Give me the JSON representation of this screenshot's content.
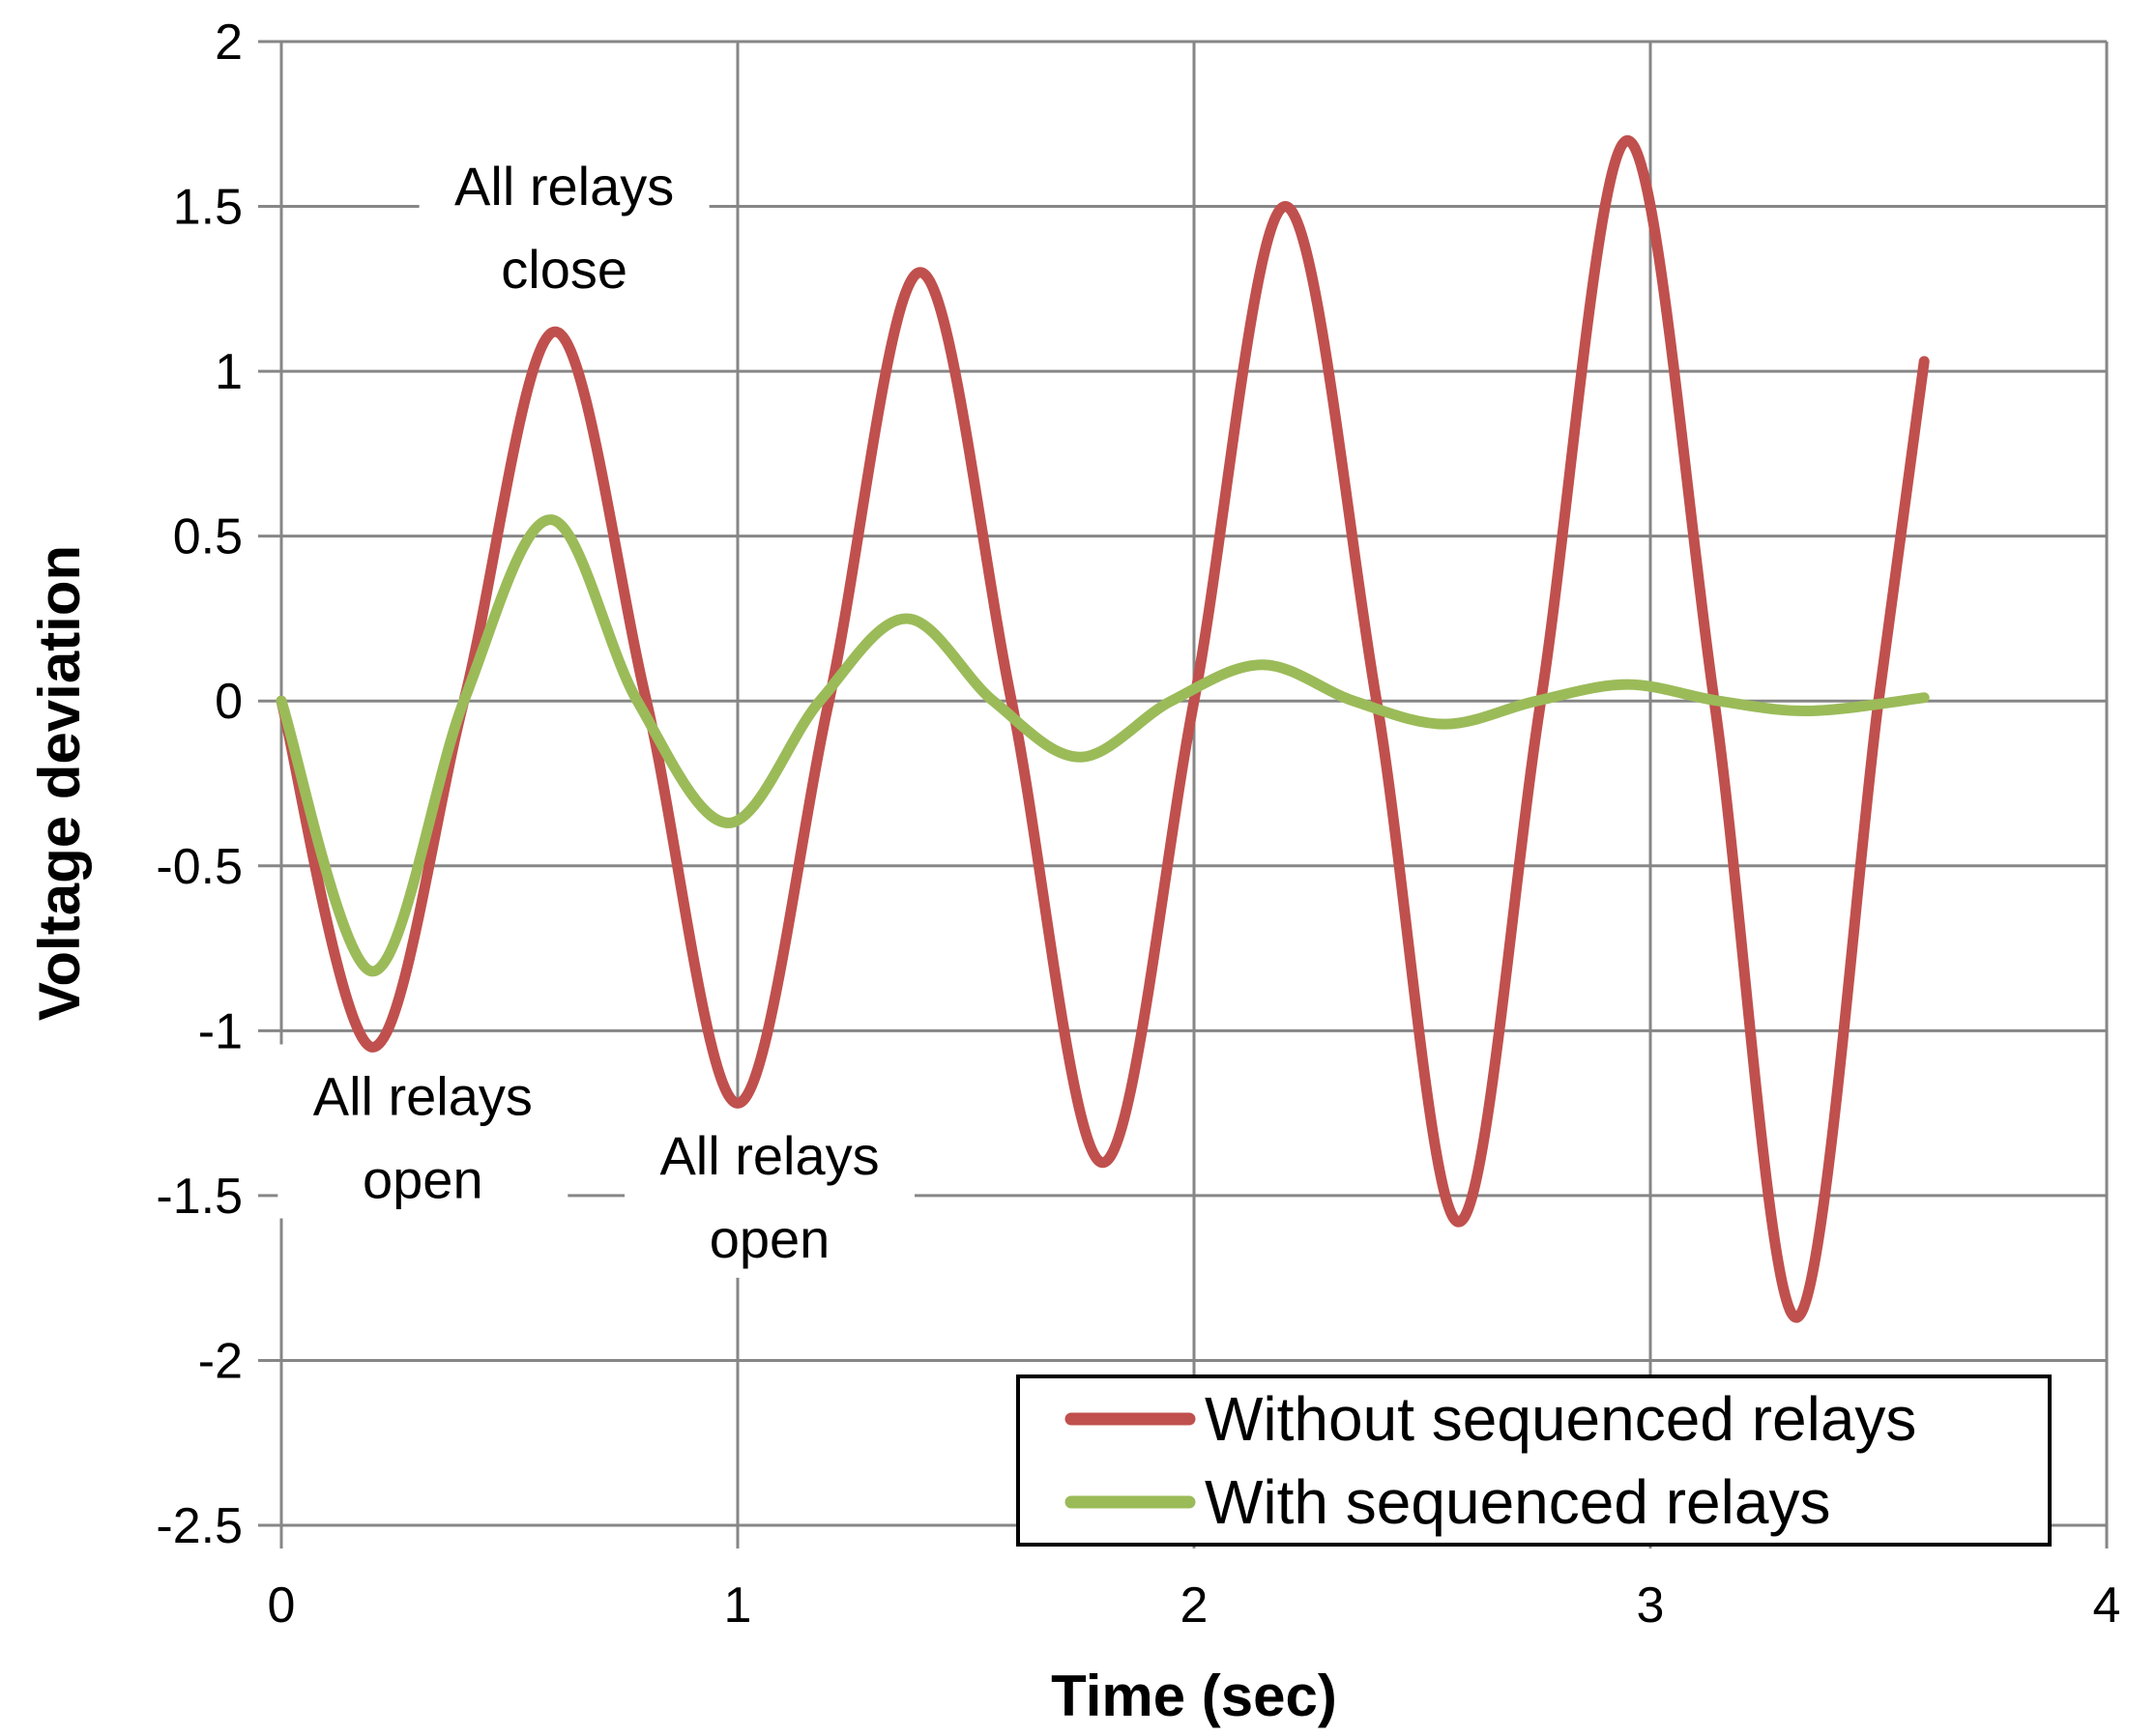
{
  "chart_data": {
    "type": "line",
    "title": "",
    "xlabel": "Time (sec)",
    "ylabel": "Voltage deviation",
    "xlim": [
      0,
      4
    ],
    "ylim": [
      -2.5,
      2
    ],
    "xticks": [
      0,
      1,
      2,
      3,
      4
    ],
    "yticks": [
      2,
      1.5,
      1,
      0.5,
      0,
      -0.5,
      -1,
      -1.5,
      -2,
      -2.5
    ],
    "xtick_labels": [
      "0",
      "1",
      "2",
      "3",
      "4"
    ],
    "ytick_labels": [
      "2",
      "1.5",
      "1",
      "0.5",
      "0",
      "-0.5",
      "-1",
      "-1.5",
      "-2",
      "-2.5"
    ],
    "grid": true,
    "legend_position": "bottom-right",
    "series": [
      {
        "name": "Without sequenced relays",
        "color": "#C0504D",
        "x": [
          0,
          0.2,
          0.4,
          0.6,
          0.8,
          1.0,
          1.2,
          1.4,
          1.6,
          1.8,
          2.0,
          2.2,
          2.4,
          2.58,
          2.76,
          2.95,
          3.14,
          3.32,
          3.5,
          3.6
        ],
        "y": [
          0,
          -1.05,
          0,
          1.12,
          0,
          -1.22,
          0,
          1.3,
          0,
          -1.4,
          0,
          1.5,
          0,
          -1.58,
          0,
          1.7,
          0,
          -1.87,
          0,
          1.03
        ]
      },
      {
        "name": "With sequenced relays",
        "color": "#9BBB59",
        "x": [
          0,
          0.2,
          0.4,
          0.59,
          0.78,
          0.98,
          1.18,
          1.37,
          1.56,
          1.75,
          1.95,
          2.15,
          2.35,
          2.55,
          2.75,
          2.95,
          3.15,
          3.35,
          3.6
        ],
        "y": [
          0,
          -0.82,
          0,
          0.55,
          0,
          -0.37,
          0,
          0.25,
          0,
          -0.17,
          0,
          0.11,
          0,
          -0.07,
          0,
          0.05,
          0,
          -0.03,
          0.01
        ]
      }
    ],
    "annotations": [
      {
        "lines": [
          "All relays",
          "close"
        ],
        "x": 0.62,
        "y": 1.44
      },
      {
        "lines": [
          "All relays",
          "open"
        ],
        "x": 0.31,
        "y": -1.32
      },
      {
        "lines": [
          "All  relays",
          "open"
        ],
        "x": 1.07,
        "y": -1.5
      }
    ]
  }
}
